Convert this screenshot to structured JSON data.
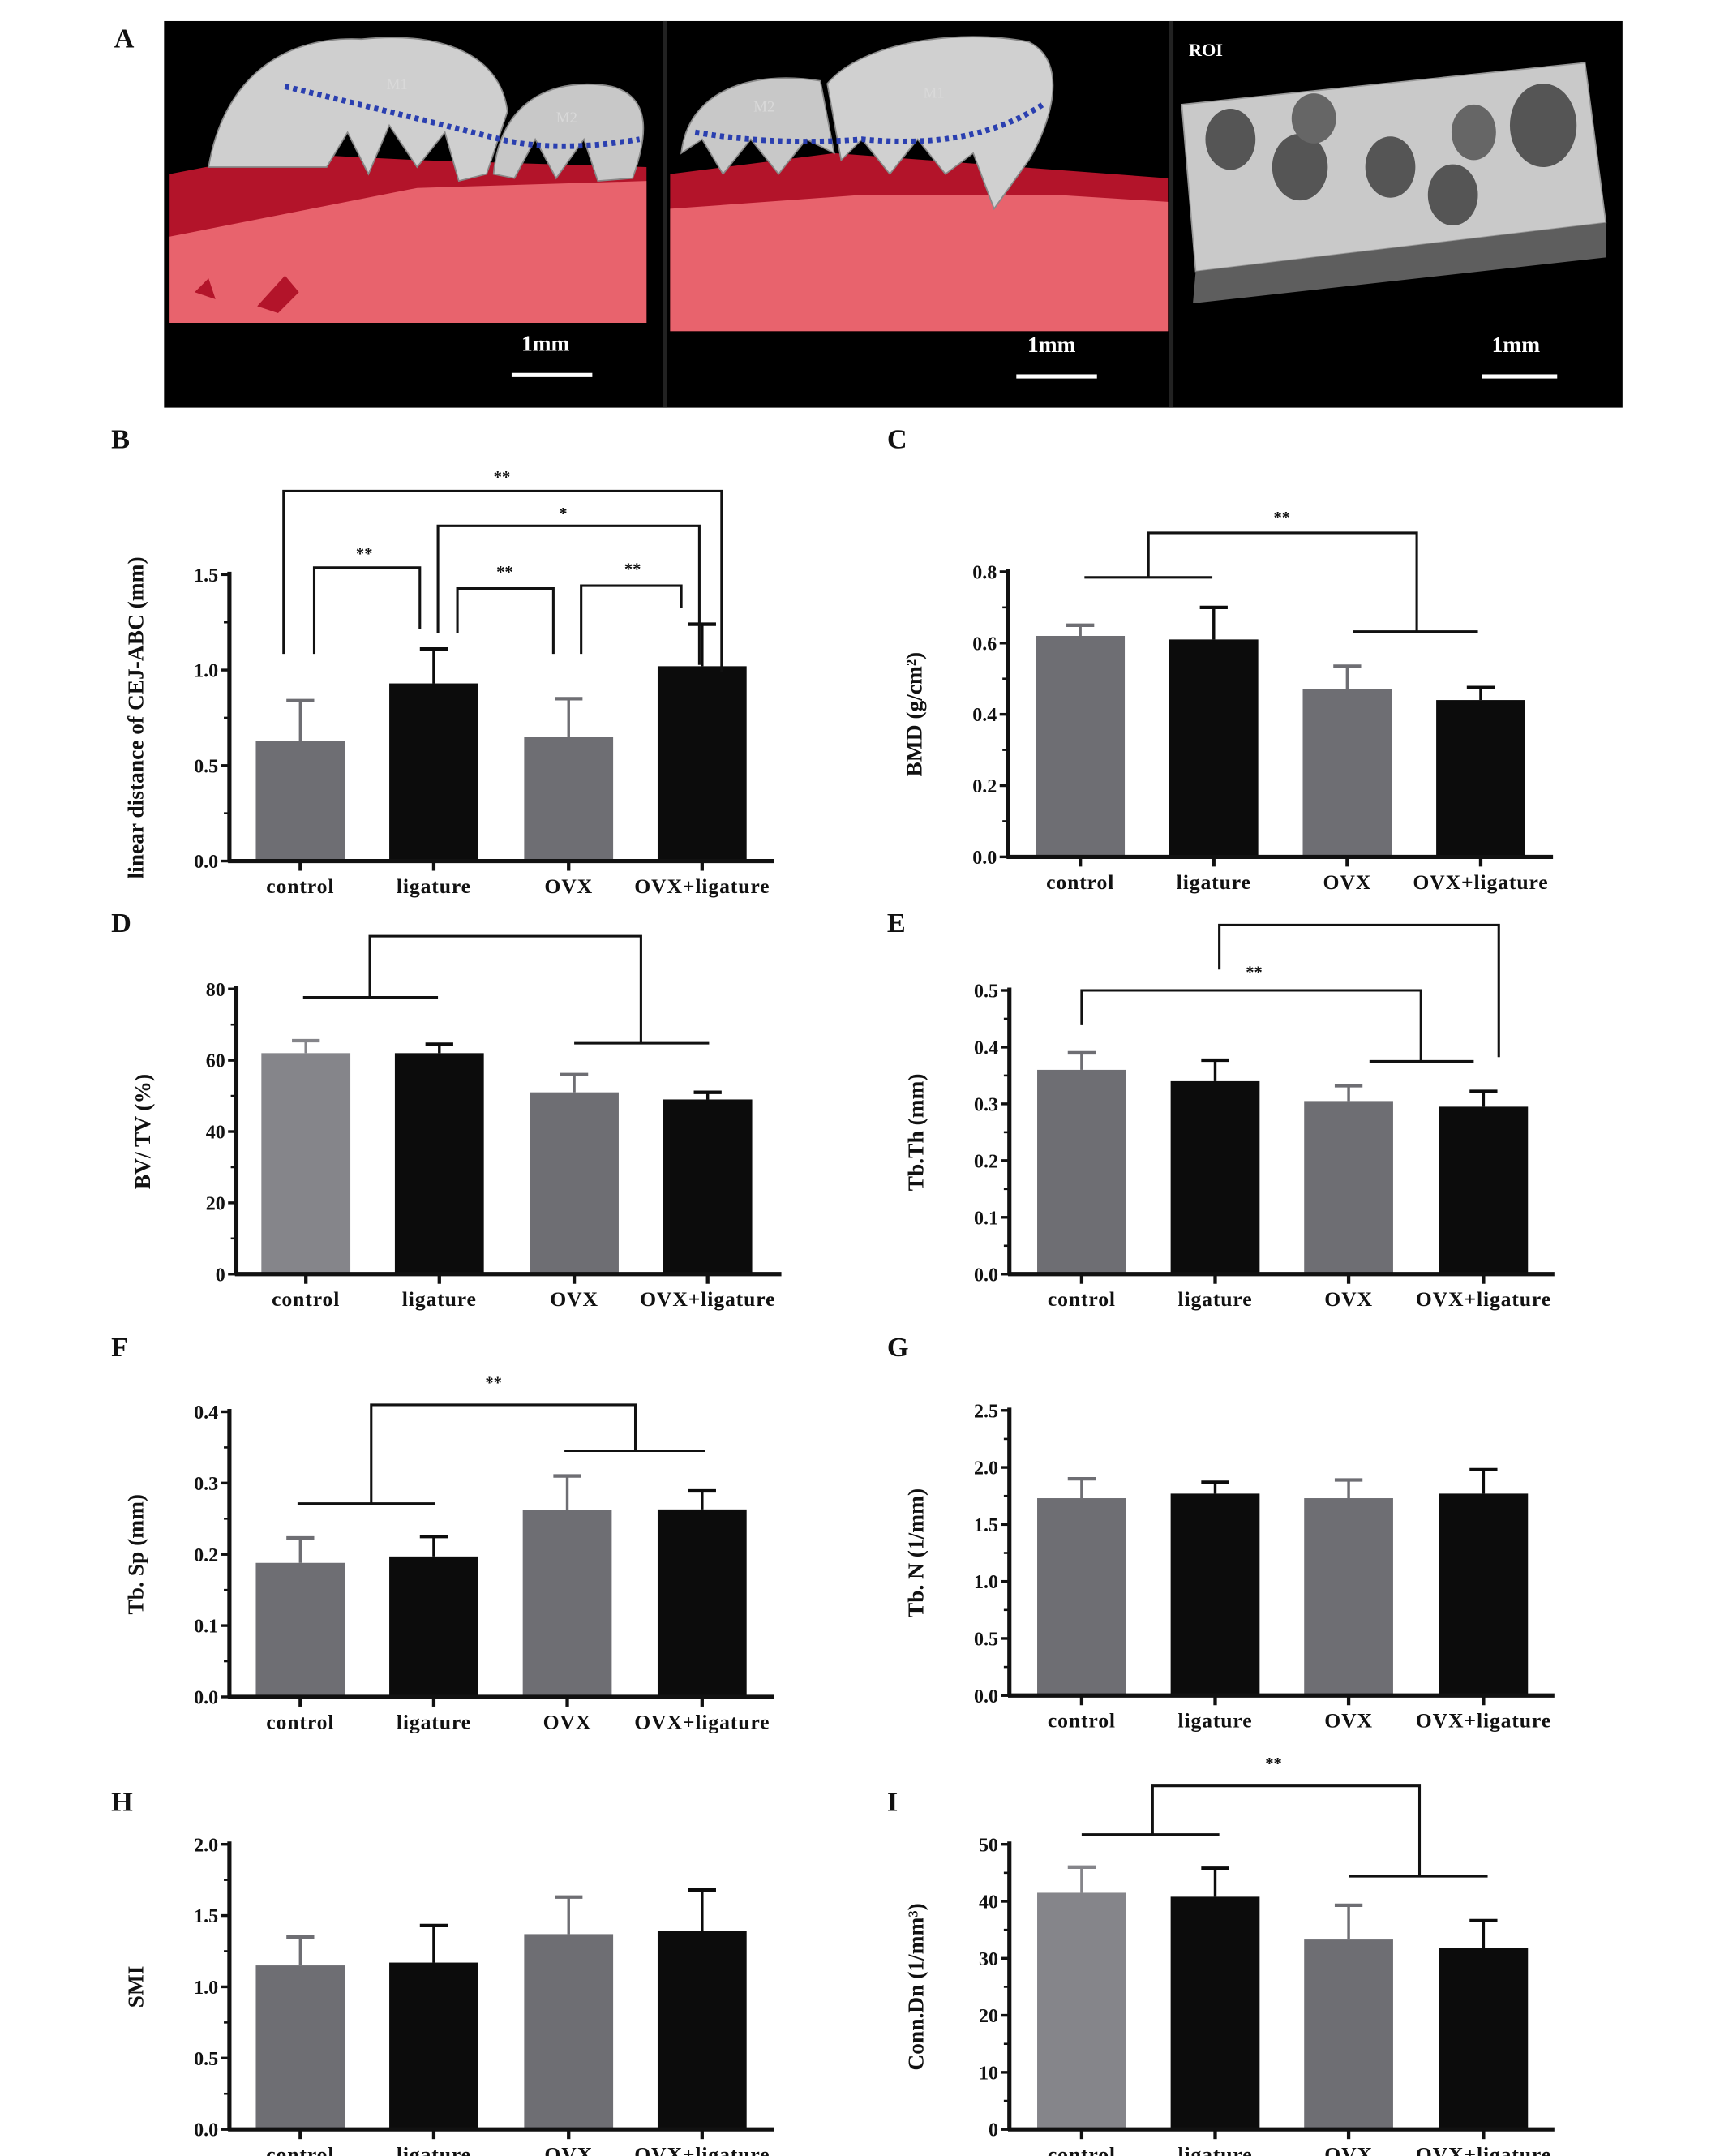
{
  "panel_a": {
    "letter": "A",
    "images": [
      {
        "tooth_labels": [
          "M1",
          "M2"
        ],
        "scale_label": "1mm"
      },
      {
        "tooth_labels": [
          "M2",
          "M1"
        ],
        "scale_label": "1mm"
      },
      {
        "title": "ROI",
        "scale_label": "1mm"
      }
    ]
  },
  "colors": {
    "gray": "#6e6e73",
    "light_gray": "#85858a",
    "black": "#0c0c0c"
  },
  "chart_data": [
    {
      "letter": "B",
      "type": "bar",
      "ylabel": "linear distance of CEJ-ABC (mm)",
      "categories": [
        "control",
        "ligature",
        "OVX",
        "OVX+ligature"
      ],
      "values": [
        0.63,
        0.93,
        0.65,
        1.02
      ],
      "errors": [
        0.21,
        0.18,
        0.2,
        0.22
      ],
      "ylim": [
        0,
        1.5
      ],
      "ticks": [
        "0.0",
        "0.5",
        "1.0",
        "1.5"
      ],
      "bar_colors": [
        "gray",
        "black",
        "gray",
        "black"
      ],
      "significance": [
        "**",
        "*",
        "**",
        "**",
        "**"
      ]
    },
    {
      "letter": "C",
      "type": "bar",
      "ylabel": "BMD (g/cm²)",
      "categories": [
        "control",
        "ligature",
        "OVX",
        "OVX+ligature"
      ],
      "values": [
        0.62,
        0.61,
        0.47,
        0.44
      ],
      "errors": [
        0.03,
        0.09,
        0.065,
        0.035
      ],
      "ylim": [
        0,
        0.8
      ],
      "ticks": [
        "0.0",
        "0.2",
        "0.4",
        "0.6",
        "0.8"
      ],
      "bar_colors": [
        "gray",
        "black",
        "gray",
        "black"
      ],
      "significance": [
        "**"
      ]
    },
    {
      "letter": "D",
      "type": "bar",
      "ylabel": "BV/ TV (%)",
      "categories": [
        "control",
        "ligature",
        "OVX",
        "OVX+ligature"
      ],
      "values": [
        62,
        62,
        51,
        49
      ],
      "errors": [
        3.5,
        2.5,
        5,
        2
      ],
      "ylim": [
        0,
        80
      ],
      "ticks": [
        "0",
        "20",
        "40",
        "60",
        "80"
      ],
      "bar_colors": [
        "light_gray",
        "black",
        "gray",
        "black"
      ],
      "significance": []
    },
    {
      "letter": "E",
      "type": "bar",
      "ylabel": "Tb.Th  (mm)",
      "categories": [
        "control",
        "ligature",
        "OVX",
        "OVX+ligature"
      ],
      "values": [
        0.36,
        0.34,
        0.305,
        0.295
      ],
      "errors": [
        0.03,
        0.037,
        0.027,
        0.027
      ],
      "ylim": [
        0,
        0.5
      ],
      "ticks": [
        "0.0",
        "0.1",
        "0.2",
        "0.3",
        "0.4",
        "0.5"
      ],
      "bar_colors": [
        "gray",
        "black",
        "gray",
        "black"
      ],
      "significance": [
        "**"
      ]
    },
    {
      "letter": "F",
      "type": "bar",
      "ylabel": "Tb. Sp  (mm)",
      "categories": [
        "control",
        "ligature",
        "OVX",
        "OVX+ligature"
      ],
      "values": [
        0.188,
        0.197,
        0.262,
        0.263
      ],
      "errors": [
        0.035,
        0.028,
        0.048,
        0.026
      ],
      "ylim": [
        0,
        0.4
      ],
      "ticks": [
        "0.0",
        "0.1",
        "0.2",
        "0.3",
        "0.4"
      ],
      "bar_colors": [
        "gray",
        "black",
        "gray",
        "black"
      ],
      "significance": [
        "**"
      ]
    },
    {
      "letter": "G",
      "type": "bar",
      "ylabel": "Tb. N  (1/mm)",
      "categories": [
        "control",
        "ligature",
        "OVX",
        "OVX+ligature"
      ],
      "values": [
        1.73,
        1.77,
        1.73,
        1.77
      ],
      "errors": [
        0.17,
        0.1,
        0.16,
        0.21
      ],
      "ylim": [
        0,
        2.5
      ],
      "ticks": [
        "0.0",
        "0.5",
        "1.0",
        "1.5",
        "2.0",
        "2.5"
      ],
      "bar_colors": [
        "gray",
        "black",
        "gray",
        "black"
      ],
      "significance": []
    },
    {
      "letter": "H",
      "type": "bar",
      "ylabel": "SMI",
      "categories": [
        "control",
        "ligature",
        "OVX",
        "OVX+ligature"
      ],
      "values": [
        1.15,
        1.17,
        1.37,
        1.39
      ],
      "errors": [
        0.2,
        0.26,
        0.26,
        0.29
      ],
      "ylim": [
        0,
        2.0
      ],
      "ticks": [
        "0.0",
        "0.5",
        "1.0",
        "1.5",
        "2.0"
      ],
      "bar_colors": [
        "gray",
        "black",
        "gray",
        "black"
      ],
      "significance": []
    },
    {
      "letter": "I",
      "type": "bar",
      "ylabel": "Conn.Dn (1/mm³)",
      "categories": [
        "control",
        "ligature",
        "OVX",
        "OVX+ligature"
      ],
      "values": [
        41.5,
        40.8,
        33.3,
        31.8
      ],
      "errors": [
        4.5,
        5,
        6,
        4.8
      ],
      "ylim": [
        0,
        50
      ],
      "ticks": [
        "0",
        "10",
        "20",
        "30",
        "40",
        "50"
      ],
      "bar_colors": [
        "light_gray",
        "black",
        "gray",
        "black"
      ],
      "significance": [
        "**"
      ]
    }
  ]
}
